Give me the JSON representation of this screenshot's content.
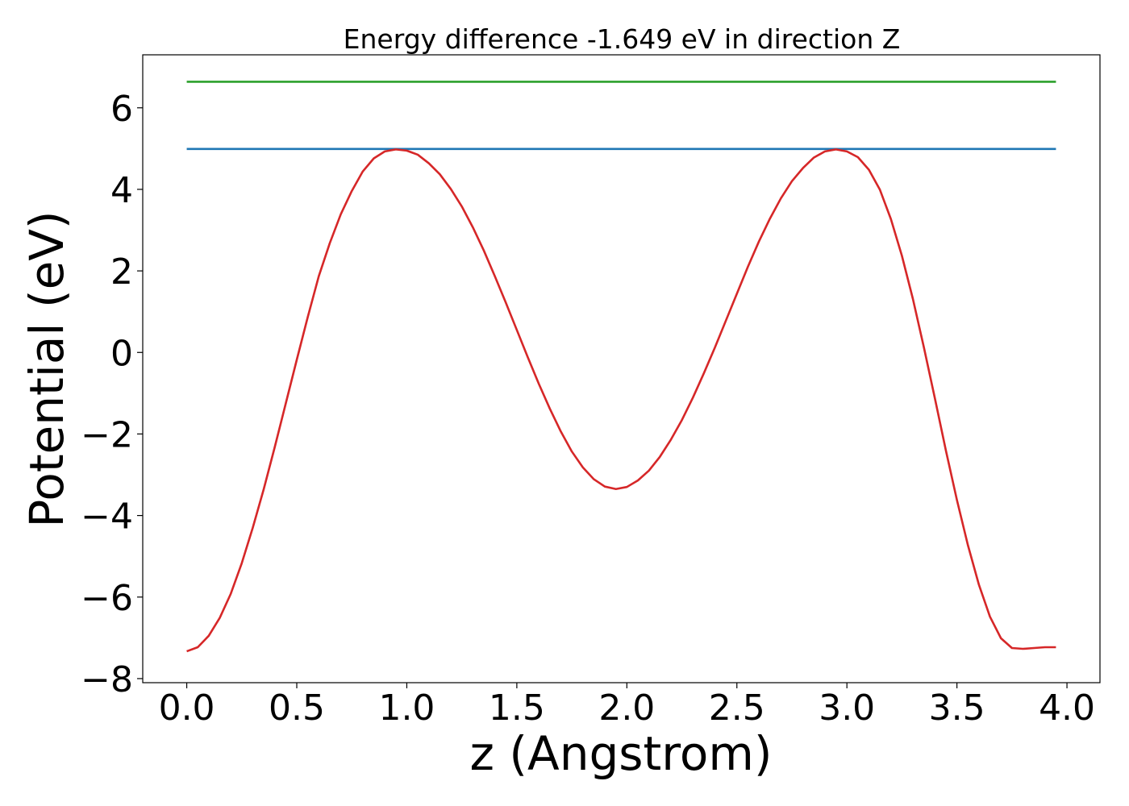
{
  "chart_data": {
    "type": "line",
    "title": "Energy difference -1.649 eV in direction Z",
    "xlabel": "z (Angstrom)",
    "ylabel": "Potential (eV)",
    "xlim": [
      -0.2,
      4.15
    ],
    "ylim": [
      -8.1,
      7.3
    ],
    "xticks": [
      0.0,
      0.5,
      1.0,
      1.5,
      2.0,
      2.5,
      3.0,
      3.5,
      4.0
    ],
    "xtick_labels": [
      "0.0",
      "0.5",
      "1.0",
      "1.5",
      "2.0",
      "2.5",
      "3.0",
      "3.5",
      "4.0"
    ],
    "yticks": [
      -8,
      -6,
      -4,
      -2,
      0,
      2,
      4,
      6
    ],
    "ytick_labels": [
      "−8",
      "−6",
      "−4",
      "−2",
      "0",
      "2",
      "4",
      "6"
    ],
    "grid": false,
    "series": [
      {
        "color": "#2ca02c",
        "x": [
          0.0,
          3.95
        ],
        "y": [
          6.64,
          6.64
        ]
      },
      {
        "color": "#1f77b4",
        "x": [
          0.0,
          3.95
        ],
        "y": [
          4.99,
          4.99
        ]
      },
      {
        "color": "#d62728",
        "x": [
          0.0,
          0.05,
          0.1,
          0.15,
          0.2,
          0.25,
          0.3,
          0.35,
          0.4,
          0.45,
          0.5,
          0.55,
          0.6,
          0.65,
          0.7,
          0.75,
          0.8,
          0.85,
          0.9,
          0.95,
          1.0,
          1.05,
          1.1,
          1.15,
          1.2,
          1.25,
          1.3,
          1.35,
          1.4,
          1.45,
          1.5,
          1.55,
          1.6,
          1.65,
          1.7,
          1.75,
          1.8,
          1.85,
          1.9,
          1.95,
          2.0,
          2.05,
          2.1,
          2.15,
          2.2,
          2.25,
          2.3,
          2.35,
          2.4,
          2.45,
          2.5,
          2.55,
          2.6,
          2.65,
          2.7,
          2.75,
          2.8,
          2.85,
          2.9,
          2.95,
          3.0,
          3.05,
          3.1,
          3.15,
          3.2,
          3.25,
          3.3,
          3.35,
          3.4,
          3.45,
          3.5,
          3.55,
          3.6,
          3.65,
          3.7,
          3.75,
          3.8,
          3.85,
          3.9,
          3.95
        ],
        "y": [
          -7.33,
          -7.23,
          -6.95,
          -6.51,
          -5.92,
          -5.17,
          -4.3,
          -3.35,
          -2.32,
          -1.25,
          -0.18,
          0.87,
          1.87,
          2.68,
          3.39,
          3.96,
          4.44,
          4.76,
          4.93,
          4.98,
          4.95,
          4.85,
          4.64,
          4.37,
          4.01,
          3.58,
          3.07,
          2.5,
          1.87,
          1.22,
          0.55,
          -0.12,
          -0.77,
          -1.38,
          -1.94,
          -2.43,
          -2.82,
          -3.11,
          -3.29,
          -3.35,
          -3.3,
          -3.14,
          -2.9,
          -2.56,
          -2.14,
          -1.66,
          -1.11,
          -0.51,
          0.12,
          0.78,
          1.44,
          2.1,
          2.72,
          3.28,
          3.78,
          4.2,
          4.52,
          4.78,
          4.93,
          4.98,
          4.93,
          4.79,
          4.48,
          3.99,
          3.27,
          2.37,
          1.31,
          0.12,
          -1.13,
          -2.41,
          -3.62,
          -4.73,
          -5.7,
          -6.48,
          -7.01,
          -7.25,
          -7.27,
          -7.25,
          -7.23,
          -7.23
        ]
      }
    ]
  }
}
